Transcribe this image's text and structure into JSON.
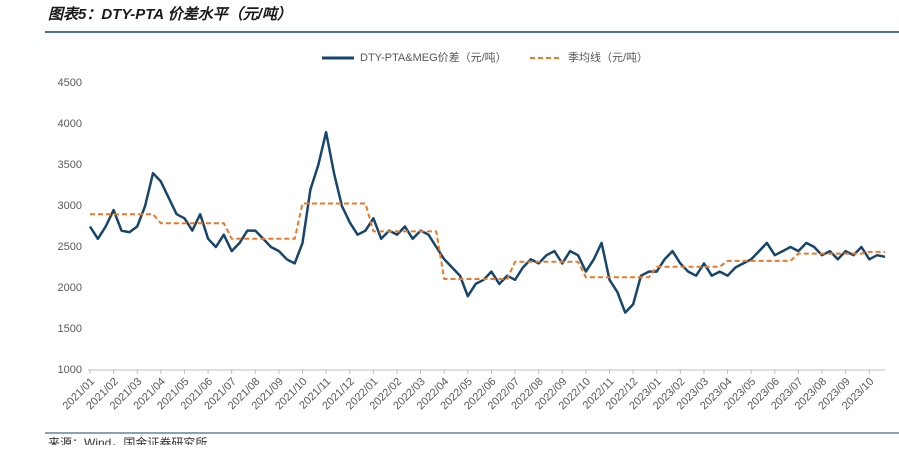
{
  "chart_data": {
    "type": "line",
    "title": "图表5：DTY-PTA 价差水平（元/吨）",
    "source": "来源：Wind，国金证券研究所",
    "categories": [
      "2021/01",
      null,
      null,
      "2021/02",
      null,
      null,
      "2021/03",
      null,
      null,
      "2021/04",
      null,
      null,
      "2021/05",
      null,
      null,
      "2021/06",
      null,
      null,
      "2021/07",
      null,
      null,
      "2021/08",
      null,
      null,
      "2021/09",
      null,
      null,
      "2021/10",
      null,
      null,
      "2021/11",
      null,
      null,
      "2021/12",
      null,
      null,
      "2022/01",
      null,
      null,
      "2022/02",
      null,
      null,
      "2022/03",
      null,
      null,
      "2022/04",
      null,
      null,
      "2022/05",
      null,
      null,
      "2022/06",
      null,
      null,
      "2022/07",
      null,
      null,
      "2022/08",
      null,
      null,
      "2022/09",
      null,
      null,
      "2022/10",
      null,
      null,
      "2022/11",
      null,
      null,
      "2022/12",
      null,
      null,
      "2023/01",
      null,
      null,
      "2023/02",
      null,
      null,
      "2023/03",
      null,
      null,
      "2023/04",
      null,
      null,
      "2023/05",
      null,
      null,
      "2023/06",
      null,
      null,
      "2023/07",
      null,
      null,
      "2023/08",
      null,
      null,
      "2023/09",
      null,
      null,
      "2023/10",
      null,
      null
    ],
    "series": [
      {
        "name": "DTY-PTA&MEG价差（元/吨）",
        "color": "#16466b",
        "dash": false,
        "values": [
          2750,
          2600,
          2750,
          2950,
          2700,
          2680,
          2750,
          3000,
          3400,
          3300,
          3100,
          2900,
          2850,
          2700,
          2900,
          2600,
          2500,
          2650,
          2450,
          2550,
          2700,
          2700,
          2600,
          2500,
          2450,
          2350,
          2300,
          2550,
          3200,
          3500,
          3900,
          3400,
          3000,
          2800,
          2650,
          2700,
          2850,
          2600,
          2700,
          2650,
          2750,
          2600,
          2700,
          2650,
          2500,
          2350,
          2250,
          2150,
          1900,
          2050,
          2100,
          2200,
          2050,
          2150,
          2100,
          2250,
          2350,
          2300,
          2400,
          2450,
          2300,
          2450,
          2400,
          2200,
          2350,
          2550,
          2100,
          1950,
          1700,
          1800,
          2150,
          2200,
          2200,
          2350,
          2450,
          2300,
          2200,
          2150,
          2300,
          2150,
          2200,
          2150,
          2250,
          2300,
          2350,
          2450,
          2550,
          2400,
          2450,
          2500,
          2450,
          2550,
          2500,
          2400,
          2450,
          2350,
          2450,
          2400,
          2500,
          2350,
          2400,
          2380
        ]
      },
      {
        "name": "季均线（元/吨）",
        "color": "#e8792b",
        "dash": true,
        "values": [
          2900,
          2900,
          2900,
          2900,
          2900,
          2900,
          2900,
          2900,
          2900,
          2790,
          2790,
          2790,
          2790,
          2790,
          2790,
          2790,
          2790,
          2790,
          2600,
          2600,
          2600,
          2600,
          2600,
          2600,
          2600,
          2600,
          2600,
          3030,
          3030,
          3030,
          3030,
          3030,
          3030,
          3030,
          3030,
          3030,
          2690,
          2690,
          2690,
          2690,
          2690,
          2690,
          2690,
          2690,
          2690,
          2110,
          2110,
          2110,
          2110,
          2110,
          2110,
          2110,
          2110,
          2110,
          2320,
          2320,
          2320,
          2320,
          2320,
          2320,
          2320,
          2320,
          2320,
          2130,
          2130,
          2130,
          2130,
          2130,
          2130,
          2130,
          2130,
          2130,
          2260,
          2260,
          2260,
          2260,
          2260,
          2260,
          2260,
          2260,
          2260,
          2330,
          2330,
          2330,
          2330,
          2330,
          2330,
          2330,
          2330,
          2330,
          2420,
          2420,
          2420,
          2420,
          2420,
          2420,
          2420,
          2420,
          2420,
          2440,
          2440,
          2440
        ]
      }
    ],
    "ylim": [
      1000,
      4500
    ],
    "yticks": [
      1000,
      1500,
      2000,
      2500,
      3000,
      3500,
      4000,
      4500
    ],
    "grid": false,
    "legend": "top"
  }
}
